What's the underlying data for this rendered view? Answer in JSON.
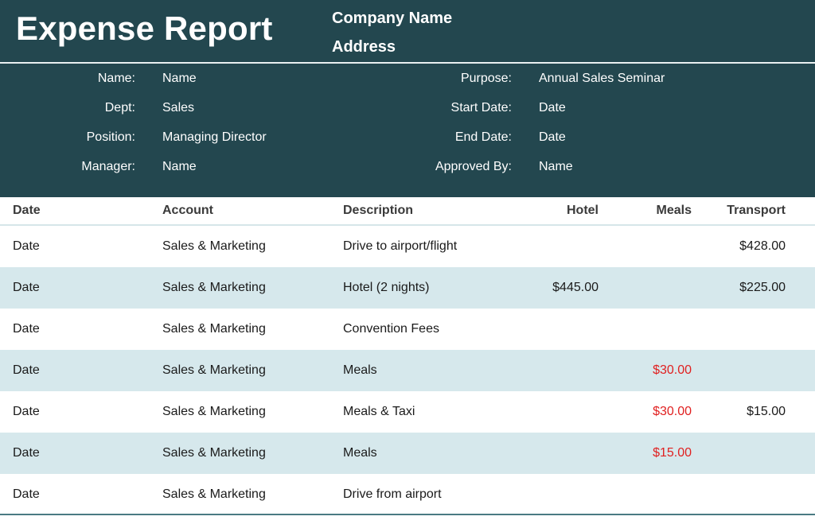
{
  "header": {
    "title": "Expense Report",
    "company_name": "Company Name",
    "address": "Address"
  },
  "info": {
    "left": [
      {
        "label": "Name:",
        "value": "Name"
      },
      {
        "label": "Dept:",
        "value": "Sales"
      },
      {
        "label": "Position:",
        "value": "Managing Director"
      },
      {
        "label": "Manager:",
        "value": "Name"
      }
    ],
    "right": [
      {
        "label": "Purpose:",
        "value": "Annual Sales Seminar"
      },
      {
        "label": "Start Date:",
        "value": "Date"
      },
      {
        "label": "End Date:",
        "value": "Date"
      },
      {
        "label": "Approved By:",
        "value": "Name"
      }
    ]
  },
  "table": {
    "columns": [
      "Date",
      "Account",
      "Description",
      "Hotel",
      "Meals",
      "Transport"
    ],
    "rows": [
      {
        "date": "Date",
        "account": "Sales & Marketing",
        "description": "Drive to airport/flight",
        "hotel": "",
        "meals": "",
        "transport": "$428.00"
      },
      {
        "date": "Date",
        "account": "Sales & Marketing",
        "description": "Hotel (2 nights)",
        "hotel": "$445.00",
        "meals": "",
        "transport": "$225.00"
      },
      {
        "date": "Date",
        "account": "Sales & Marketing",
        "description": "Convention Fees",
        "hotel": "",
        "meals": "",
        "transport": ""
      },
      {
        "date": "Date",
        "account": "Sales & Marketing",
        "description": "Meals",
        "hotel": "",
        "meals": "$30.00",
        "transport": ""
      },
      {
        "date": "Date",
        "account": "Sales & Marketing",
        "description": "Meals & Taxi",
        "hotel": "",
        "meals": "$30.00",
        "transport": "$15.00"
      },
      {
        "date": "Date",
        "account": "Sales & Marketing",
        "description": "Meals",
        "hotel": "",
        "meals": "$15.00",
        "transport": ""
      },
      {
        "date": "Date",
        "account": "Sales & Marketing",
        "description": "Drive from airport",
        "hotel": "",
        "meals": "",
        "transport": ""
      }
    ]
  },
  "colors": {
    "header_bg": "#23474f",
    "alt_row_bg": "#d6e8ec",
    "meals_text": "#e02020"
  }
}
